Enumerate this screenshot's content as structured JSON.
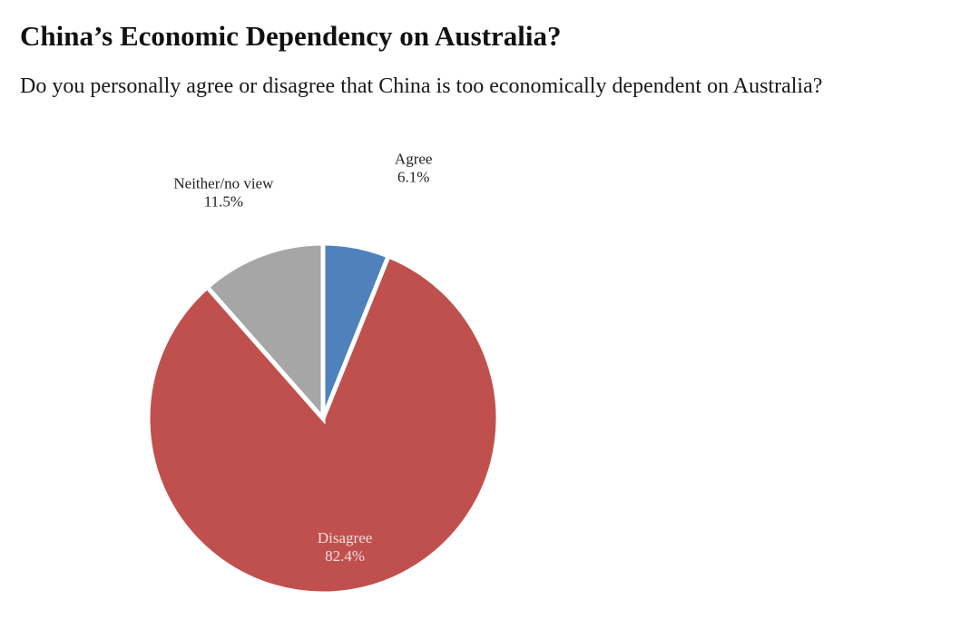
{
  "chart_data": {
    "type": "pie",
    "title": "China’s Economic Dependency on Australia?",
    "subtitle": "Do you personally agree or disagree that China is too economically dependent on Australia?",
    "slices": [
      {
        "name": "Agree",
        "value": 6.1,
        "label": "6.1%",
        "color": "#4f81bd"
      },
      {
        "name": "Disagree",
        "value": 82.4,
        "label": "82.4%",
        "color": "#c0504d"
      },
      {
        "name": "Neither/no view",
        "value": 11.5,
        "label": "11.5%",
        "color": "#a6a6a6"
      }
    ]
  }
}
